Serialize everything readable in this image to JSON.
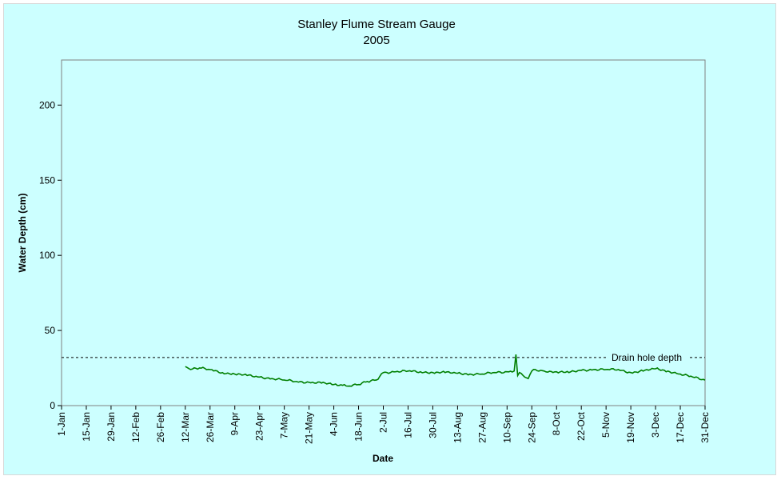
{
  "chart_data": {
    "type": "line",
    "title": "Stanley Flume Stream Gauge",
    "subtitle": "2005",
    "xlabel": "Date",
    "ylabel": "Water Depth (cm)",
    "ylim": [
      0,
      230
    ],
    "yticks": [
      0,
      50,
      100,
      150,
      200
    ],
    "xlim": [
      "2005-01-01",
      "2005-12-31"
    ],
    "xtick_labels": [
      "1-Jan",
      "15-Jan",
      "29-Jan",
      "12-Feb",
      "26-Feb",
      "12-Mar",
      "26-Mar",
      "9-Apr",
      "23-Apr",
      "7-May",
      "21-May",
      "4-Jun",
      "18-Jun",
      "2-Jul",
      "16-Jul",
      "30-Jul",
      "13-Aug",
      "27-Aug",
      "10-Sep",
      "24-Sep",
      "8-Oct",
      "22-Oct",
      "5-Nov",
      "19-Nov",
      "3-Dec",
      "17-Dec",
      "31-Dec"
    ],
    "grid": false,
    "series": [
      {
        "color": "#007f00",
        "x": [
          "2005-03-12",
          "2005-03-15",
          "2005-03-20",
          "2005-03-26",
          "2005-04-02",
          "2005-04-09",
          "2005-04-16",
          "2005-04-23",
          "2005-04-30",
          "2005-05-07",
          "2005-05-14",
          "2005-05-21",
          "2005-05-28",
          "2005-06-04",
          "2005-06-09",
          "2005-06-13",
          "2005-06-18",
          "2005-06-23",
          "2005-06-28",
          "2005-07-02",
          "2005-07-09",
          "2005-07-16",
          "2005-07-23",
          "2005-07-30",
          "2005-08-06",
          "2005-08-13",
          "2005-08-20",
          "2005-08-27",
          "2005-09-03",
          "2005-09-10",
          "2005-09-14",
          "2005-09-15",
          "2005-09-16",
          "2005-09-17",
          "2005-09-20",
          "2005-09-22",
          "2005-09-24",
          "2005-09-26",
          "2005-10-01",
          "2005-10-08",
          "2005-10-15",
          "2005-10-22",
          "2005-10-29",
          "2005-11-05",
          "2005-11-12",
          "2005-11-19",
          "2005-11-26",
          "2005-12-03",
          "2005-12-10",
          "2005-12-17",
          "2005-12-24",
          "2005-12-31"
        ],
        "y": [
          26,
          24,
          25,
          24,
          22,
          21,
          20,
          19,
          18,
          17,
          16,
          15.5,
          15,
          14,
          13.5,
          13,
          14,
          16,
          17,
          22,
          22.5,
          23,
          22.5,
          22,
          22,
          21.5,
          21,
          21,
          22,
          22.5,
          23,
          34,
          20,
          22,
          19,
          18,
          23,
          24,
          23,
          22.5,
          22,
          23.5,
          24,
          24,
          24,
          22,
          23,
          24.5,
          23,
          21,
          19,
          17
        ]
      }
    ],
    "reference_line": {
      "y": 32,
      "label": "Drain hole depth",
      "style": "dashed"
    }
  }
}
